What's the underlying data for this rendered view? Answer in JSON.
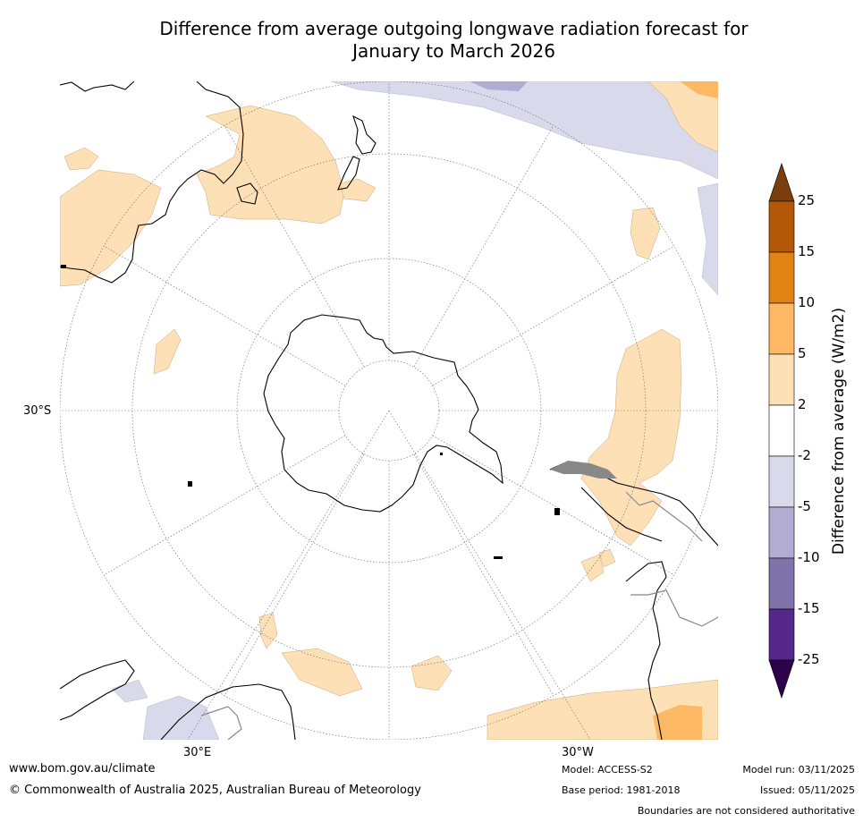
{
  "title_line1": "Difference from average outgoing longwave radiation forecast for",
  "title_line2": "January to March 2026",
  "axis_labels": {
    "lat": "30°S",
    "lon_east": "30°E",
    "lon_west": "30°W"
  },
  "colorbar": {
    "label": "Difference from average (W/m2)",
    "ticks": [
      "25",
      "15",
      "10",
      "5",
      "2",
      "-2",
      "-5",
      "-10",
      "-15",
      "-25"
    ],
    "colors": [
      "#7a3d0b",
      "#b35806",
      "#e08214",
      "#fdb863",
      "#fee0b6",
      "#ffffff",
      "#d8daeb",
      "#b2abd2",
      "#8073ac",
      "#542788",
      "#2d004b"
    ]
  },
  "footer": {
    "website": "www.bom.gov.au/climate",
    "copyright": "© Commonwealth of Australia 2025, Australian Bureau of Meteorology",
    "model": "Model: ACCESS-S2",
    "base_period": "Base period: 1981-2018",
    "model_run": "Model run: 03/11/2025",
    "issued": "Issued: 05/11/2025",
    "disclaimer": "Boundaries are not considered authoritative"
  }
}
